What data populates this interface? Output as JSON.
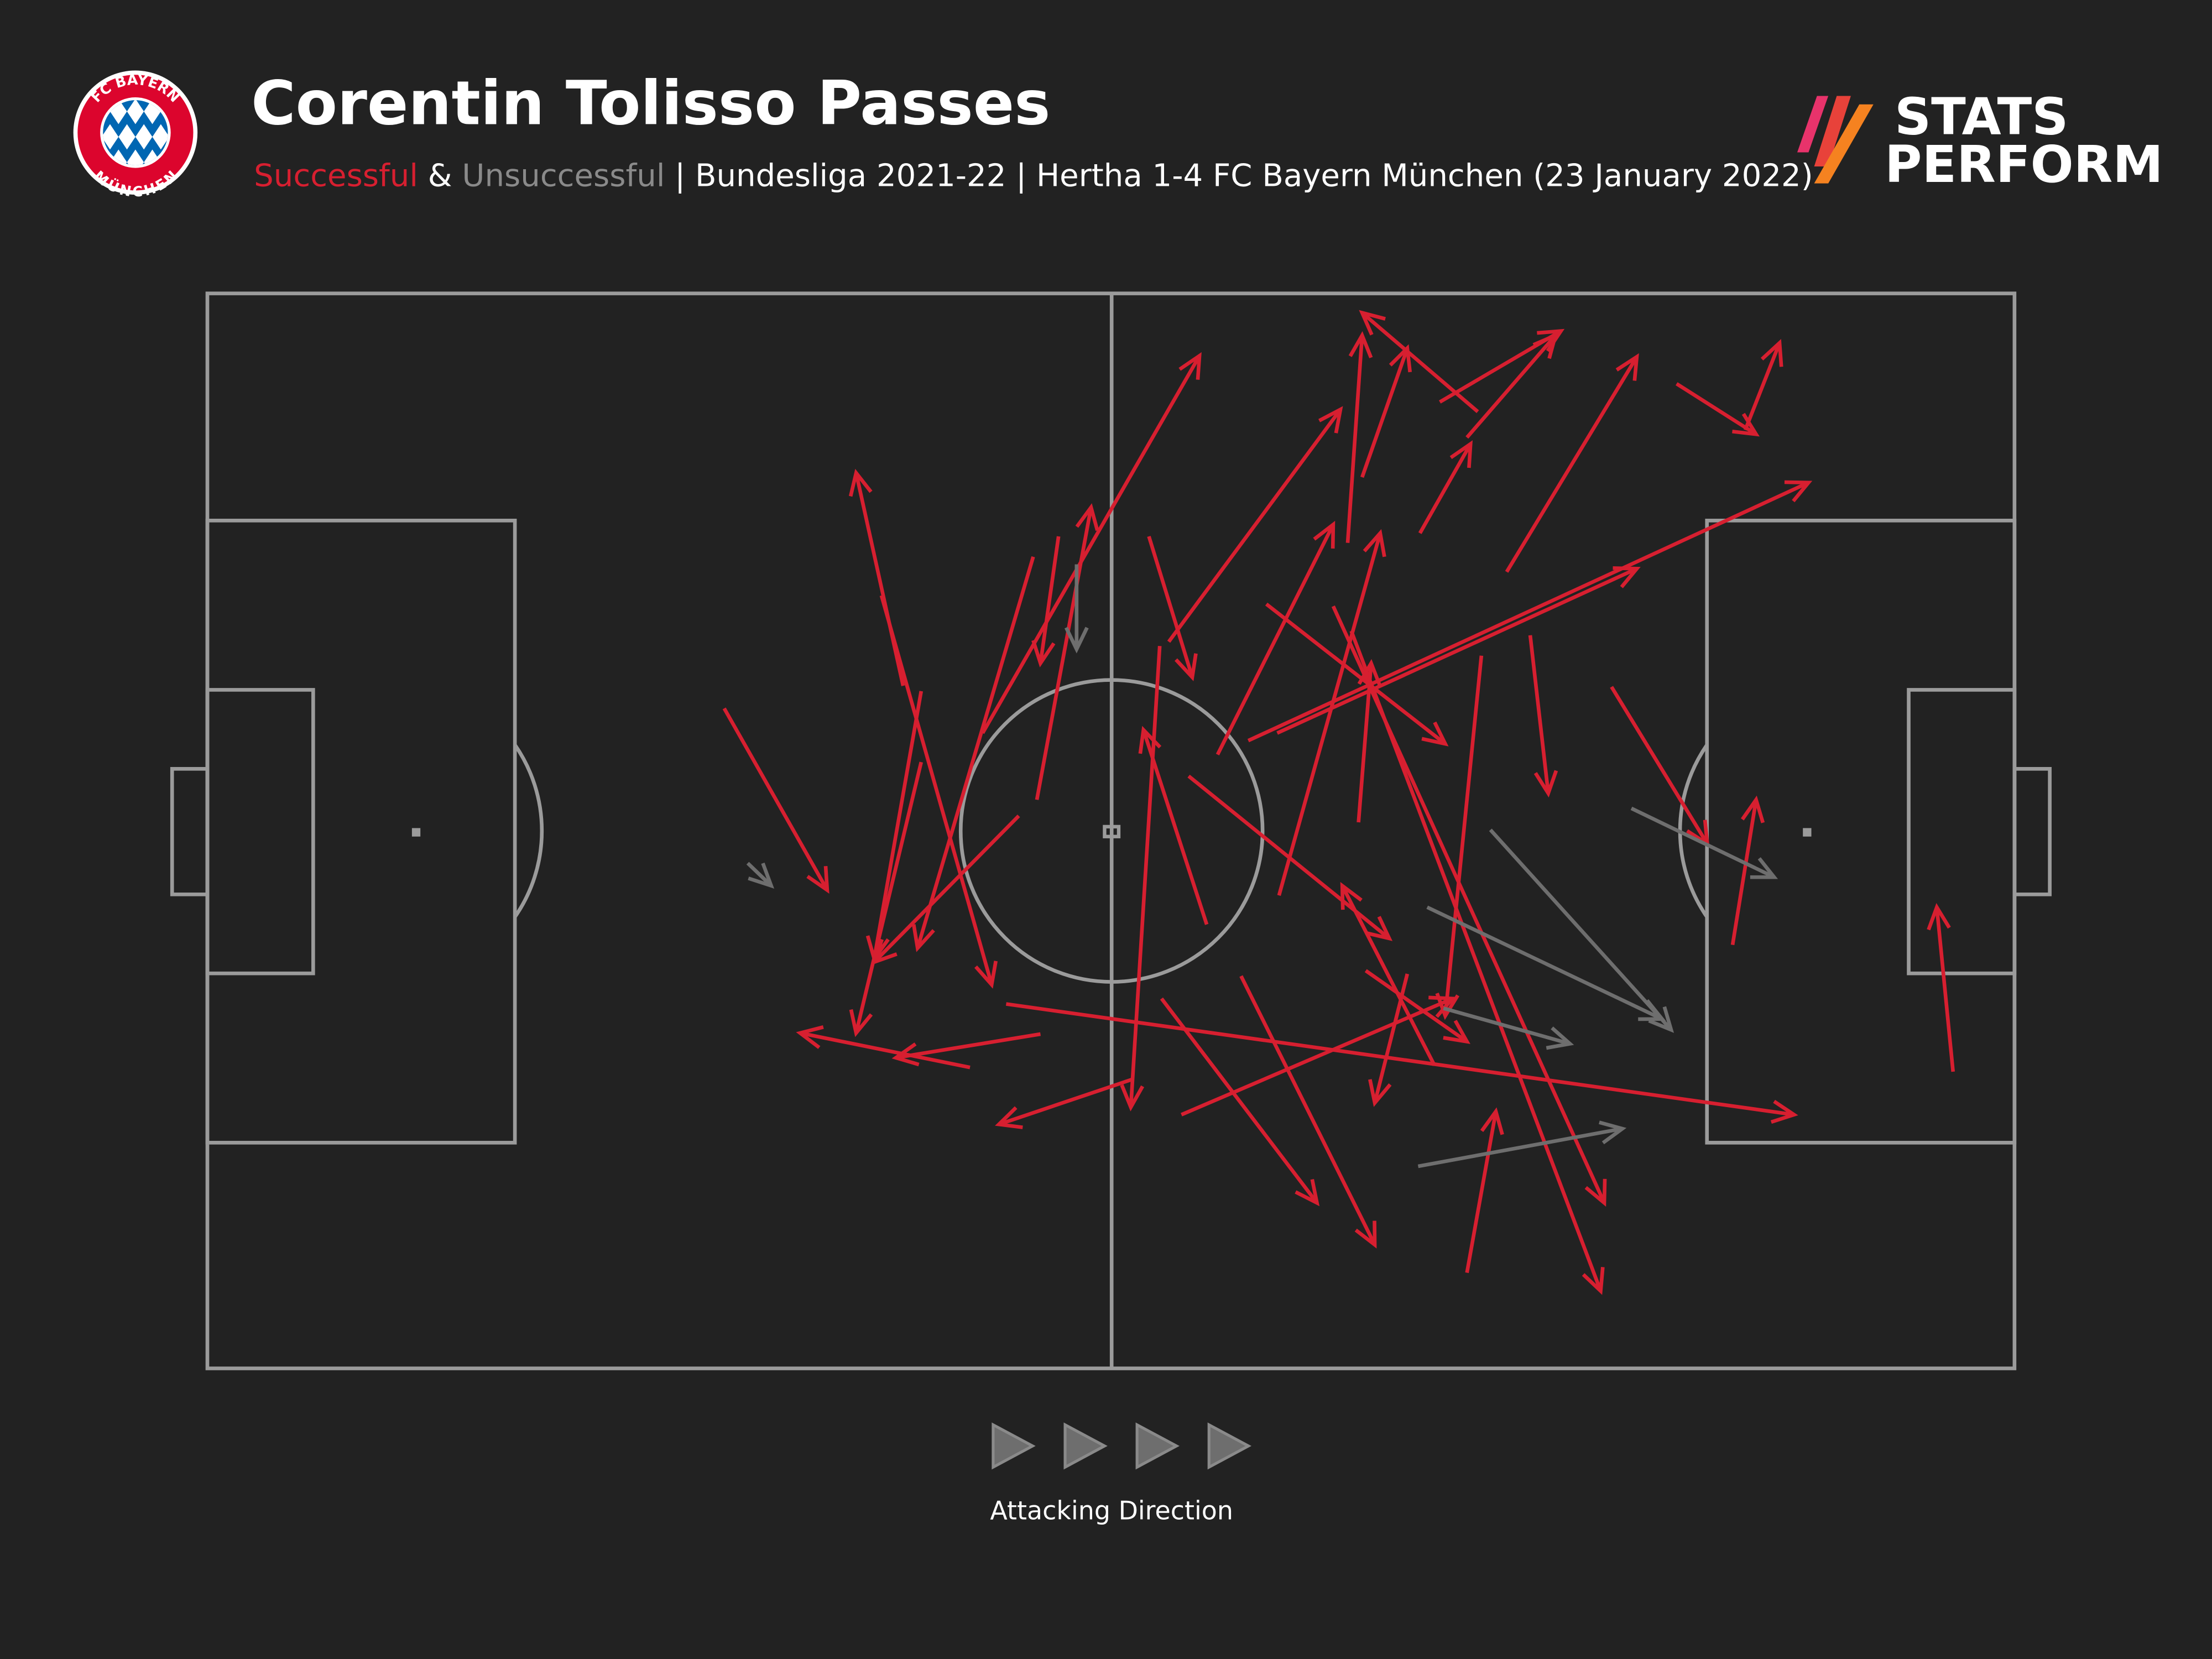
{
  "header": {
    "title": "Corentin Tolisso Passes",
    "subtitle_successful": "Successful",
    "subtitle_amp": " & ",
    "subtitle_unsuccessful": "Unsuccessful",
    "subtitle_rest": " | Bundesliga 2021-22 | Hertha 1-4 FC Bayern München (23 January 2022)",
    "club_logo_text": "FC BAYERN MÜNCHEN",
    "brand_line1": "STATS",
    "brand_line2": "PERFORM"
  },
  "footer": {
    "direction_label": "Attacking Direction",
    "direction_icon": "play-triangle-icon"
  },
  "colors": {
    "background": "#222222",
    "successful": "#d71f30",
    "unsuccessful": "#6e6e6e",
    "pitch_lines": "#9b9b9b"
  },
  "chart_data": {
    "type": "pass-map",
    "pitch": {
      "x_range": [
        0,
        100
      ],
      "y_range": [
        0,
        100
      ],
      "attacking_direction": "left-to-right"
    },
    "legend": [
      "Successful",
      "Unsuccessful"
    ],
    "series": [
      {
        "name": "Successful",
        "passes": [
          [
            28.6,
            61.4,
            34.3,
            44.5
          ],
          [
            38.5,
            63.5,
            35.9,
            83.3
          ],
          [
            37.3,
            71.9,
            43.4,
            35.7
          ],
          [
            39.5,
            63.0,
            36.9,
            38.1
          ],
          [
            39.5,
            56.4,
            35.9,
            31.2
          ],
          [
            45.7,
            75.5,
            39.3,
            39.1
          ],
          [
            47.1,
            77.4,
            46.1,
            65.6
          ],
          [
            45.9,
            52.9,
            48.9,
            80.1
          ],
          [
            44.9,
            51.4,
            36.9,
            37.8
          ],
          [
            42.9,
            59.1,
            54.9,
            94.2
          ],
          [
            52.1,
            77.4,
            54.5,
            64.3
          ],
          [
            52.7,
            67.2,
            51.1,
            24.3
          ],
          [
            55.3,
            41.3,
            51.8,
            59.4
          ],
          [
            53.2,
            67.6,
            62.7,
            89.2
          ],
          [
            55.9,
            57.1,
            62.3,
            78.5
          ],
          [
            59.3,
            44.0,
            64.9,
            77.7
          ],
          [
            63.1,
            76.8,
            63.9,
            96.1
          ],
          [
            63.9,
            82.9,
            66.4,
            94.9
          ],
          [
            70.3,
            89.0,
            63.9,
            98.2
          ],
          [
            68.2,
            89.9,
            74.9,
            96.5
          ],
          [
            67.1,
            77.7,
            69.9,
            86.0
          ],
          [
            69.7,
            86.6,
            74.6,
            96.1
          ],
          [
            71.9,
            74.1,
            79.1,
            94.1
          ],
          [
            81.3,
            91.6,
            85.7,
            86.9
          ],
          [
            85.1,
            87.3,
            87.0,
            95.4
          ],
          [
            57.6,
            58.4,
            88.6,
            82.4
          ],
          [
            59.2,
            59.1,
            79.1,
            74.4
          ],
          [
            58.6,
            71.1,
            68.5,
            58.1
          ],
          [
            62.3,
            70.9,
            77.3,
            15.4
          ],
          [
            63.3,
            68.6,
            77.1,
            7.2
          ],
          [
            63.7,
            50.8,
            64.4,
            65.6
          ],
          [
            70.5,
            66.3,
            68.5,
            32.8
          ],
          [
            73.2,
            68.2,
            74.2,
            53.5
          ],
          [
            77.7,
            63.4,
            83.0,
            48.8
          ],
          [
            54.3,
            55.1,
            65.4,
            40.0
          ],
          [
            67.9,
            28.2,
            62.8,
            44.9
          ],
          [
            64.1,
            37.0,
            69.7,
            30.4
          ],
          [
            66.4,
            36.7,
            64.6,
            24.7
          ],
          [
            53.9,
            23.6,
            68.9,
            34.4
          ],
          [
            44.2,
            33.9,
            87.8,
            23.6
          ],
          [
            46.1,
            31.1,
            38.1,
            28.9
          ],
          [
            42.2,
            28.0,
            32.8,
            31.2
          ],
          [
            51.2,
            26.9,
            43.8,
            22.7
          ],
          [
            52.8,
            34.4,
            61.4,
            15.4
          ],
          [
            57.2,
            36.5,
            64.6,
            11.5
          ],
          [
            69.7,
            8.9,
            71.3,
            23.9
          ],
          [
            84.4,
            39.4,
            85.7,
            52.9
          ],
          [
            96.6,
            27.6,
            95.7,
            42.9
          ]
        ]
      },
      {
        "name": "Unsuccessful",
        "passes": [
          [
            29.9,
            47.0,
            31.2,
            44.9
          ],
          [
            48.1,
            74.8,
            48.1,
            66.9
          ],
          [
            71.0,
            50.1,
            81.0,
            31.5
          ],
          [
            67.5,
            42.9,
            80.5,
            32.5
          ],
          [
            68.4,
            33.5,
            75.4,
            30.2
          ],
          [
            67.0,
            18.8,
            78.3,
            22.3
          ],
          [
            78.8,
            52.1,
            86.7,
            45.7
          ]
        ]
      }
    ]
  }
}
